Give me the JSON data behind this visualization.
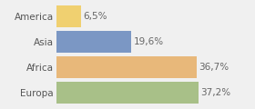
{
  "categories": [
    "Europa",
    "Africa",
    "Asia",
    "America"
  ],
  "values": [
    37.2,
    36.7,
    19.6,
    6.5
  ],
  "labels": [
    "37,2%",
    "36,7%",
    "19,6%",
    "6,5%"
  ],
  "bar_colors": [
    "#a8c088",
    "#e8b87a",
    "#7b97c4",
    "#f0d070"
  ],
  "background_color": "#f0f0f0",
  "xlim": [
    0,
    44
  ],
  "bar_height": 0.85,
  "label_fontsize": 7.5,
  "category_fontsize": 7.5,
  "label_color": "#666666",
  "category_color": "#555555"
}
